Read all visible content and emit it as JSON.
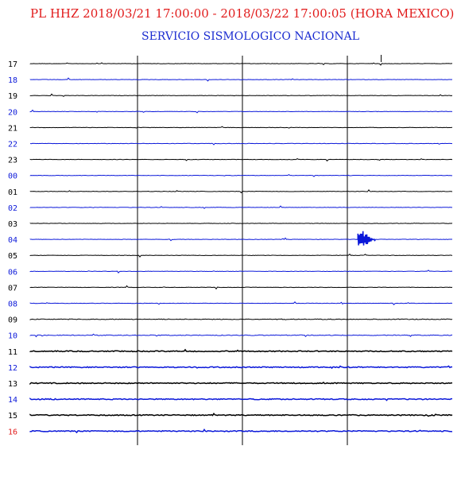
{
  "header": {
    "title": "PL HHZ 2018/03/21 17:00:00 - 2018/03/22 17:00:05 (HORA MEXICO)",
    "subtitle": "SERVICIO SISMOLOGICO NACIONAL"
  },
  "colors": {
    "title": "#e11b1b",
    "subtitle": "#1a2bd0",
    "trace_black": "#000000",
    "trace_blue": "#0b18d9",
    "label_red": "#e11b1b"
  },
  "chart_data": {
    "type": "line",
    "title": "PL HHZ 2018/03/21 17:00:00 - 2018/03/22 17:00:05 (HORA MEXICO)",
    "subtitle": "SERVICIO SISMOLOGICO NACIONAL",
    "xlabel": "",
    "ylabel": "",
    "grid": "vertical",
    "legend": "none",
    "rows": [
      {
        "label": "17",
        "color": "black",
        "noise": 1
      },
      {
        "label": "18",
        "color": "blue",
        "noise": 1
      },
      {
        "label": "19",
        "color": "black",
        "noise": 1
      },
      {
        "label": "20",
        "color": "blue",
        "noise": 1
      },
      {
        "label": "21",
        "color": "black",
        "noise": 1
      },
      {
        "label": "22",
        "color": "blue",
        "noise": 1
      },
      {
        "label": "23",
        "color": "black",
        "noise": 1
      },
      {
        "label": "00",
        "color": "blue",
        "noise": 1
      },
      {
        "label": "01",
        "color": "black",
        "noise": 1
      },
      {
        "label": "02",
        "color": "blue",
        "noise": 1
      },
      {
        "label": "03",
        "color": "black",
        "noise": 1
      },
      {
        "label": "04",
        "color": "blue",
        "noise": 1,
        "event": {
          "at_fraction": 0.79,
          "amplitude": 1
        }
      },
      {
        "label": "05",
        "color": "black",
        "noise": 1
      },
      {
        "label": "06",
        "color": "blue",
        "noise": 1
      },
      {
        "label": "07",
        "color": "black",
        "noise": 1
      },
      {
        "label": "08",
        "color": "blue",
        "noise": 1
      },
      {
        "label": "09",
        "color": "black",
        "noise": 2
      },
      {
        "label": "10",
        "color": "blue",
        "noise": 2
      },
      {
        "label": "11",
        "color": "black",
        "noise": 3
      },
      {
        "label": "12",
        "color": "blue",
        "noise": 3
      },
      {
        "label": "13",
        "color": "black",
        "noise": 3
      },
      {
        "label": "14",
        "color": "blue",
        "noise": 3
      },
      {
        "label": "15",
        "color": "black",
        "noise": 3
      },
      {
        "label": "16",
        "color": "red_label_blue_trace",
        "noise": 3,
        "partial_fraction": 1
      }
    ],
    "minute_markers": 4,
    "timing_mark_fraction": 0.83
  }
}
